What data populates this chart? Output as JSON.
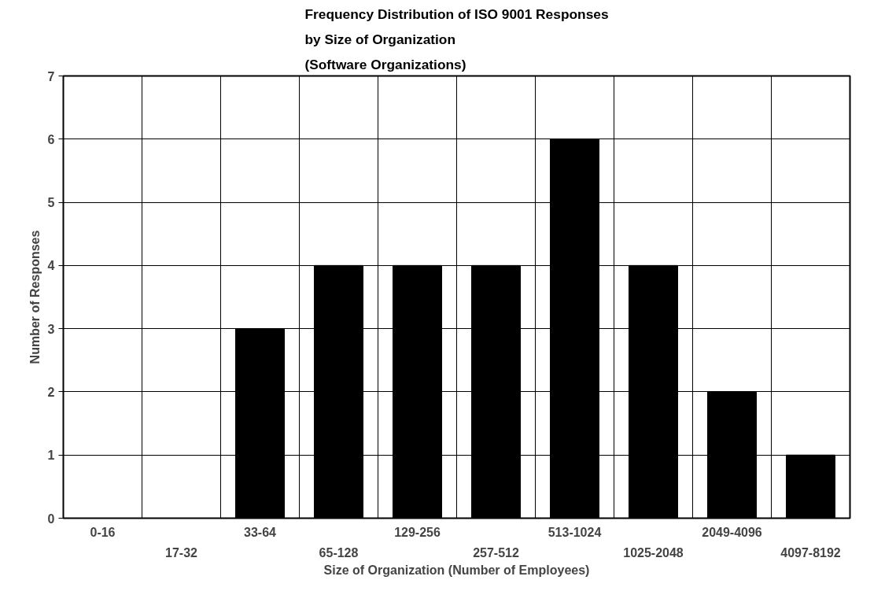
{
  "chart_data": {
    "type": "bar",
    "title": "Frequency Distribution of ISO 9001 Responses\nby Size of Organization\n(Software Organizations)",
    "xlabel": "Size of Organization (Number of Employees)",
    "ylabel": "Number of Responses",
    "categories": [
      "0-16",
      "17-32",
      "33-64",
      "65-128",
      "129-256",
      "257-512",
      "513-1024",
      "1025-2048",
      "2049-4096",
      "4097-8192"
    ],
    "values": [
      0,
      0,
      3,
      4,
      4,
      4,
      6,
      4,
      2,
      1
    ],
    "color": "#000000",
    "ylim": [
      0,
      7
    ],
    "yticks": [
      0,
      1,
      2,
      3,
      4,
      5,
      6,
      7
    ],
    "grid": true
  }
}
